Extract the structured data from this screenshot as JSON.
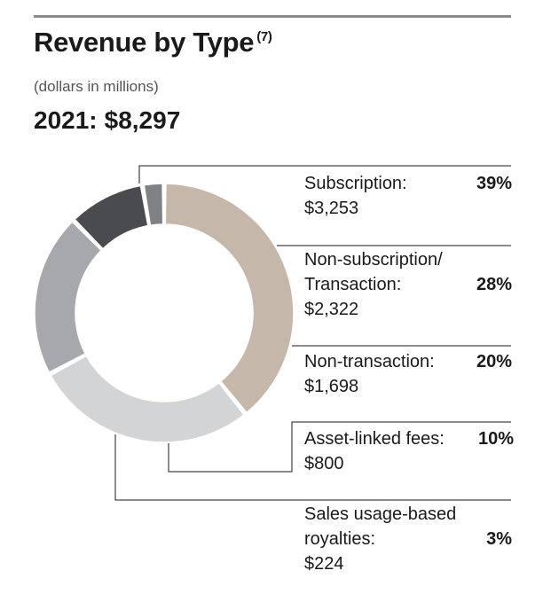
{
  "header": {
    "title": "Revenue by Type",
    "footnote": "(7)",
    "subtitle": "(dollars in millions)",
    "total_year": "2021:",
    "total_value": "$8,297"
  },
  "colors": {
    "subscription": "#c5b8aa",
    "non_subscription": "#d3d4d6",
    "non_transaction": "#a7a8ab",
    "asset_linked": "#4a4b4e",
    "sales_usage": "#808184",
    "rule": "#8a8a8c",
    "leader": "#1a1a1a"
  },
  "chart_data": {
    "type": "pie",
    "variant": "donut",
    "unit": "dollars in millions",
    "total": 8297,
    "slices": [
      {
        "name_lines": [
          "Subscription:"
        ],
        "value": 3253,
        "value_label": "$3,253",
        "percent_label": "39%",
        "color": "#c5b8aa"
      },
      {
        "name_lines": [
          "Non-subscription/",
          "Transaction:"
        ],
        "value": 2322,
        "value_label": "$2,322",
        "percent_label": "28%",
        "color": "#d3d4d6"
      },
      {
        "name_lines": [
          "Non-transaction:"
        ],
        "value": 1698,
        "value_label": "$1,698",
        "percent_label": "20%",
        "color": "#a7a8ab"
      },
      {
        "name_lines": [
          "Asset-linked fees:"
        ],
        "value": 800,
        "value_label": "$800",
        "percent_label": "10%",
        "color": "#4a4b4e"
      },
      {
        "name_lines": [
          "Sales usage-based",
          "royalties:"
        ],
        "value": 224,
        "value_label": "$224",
        "percent_label": "3%",
        "color": "#808184"
      }
    ]
  }
}
